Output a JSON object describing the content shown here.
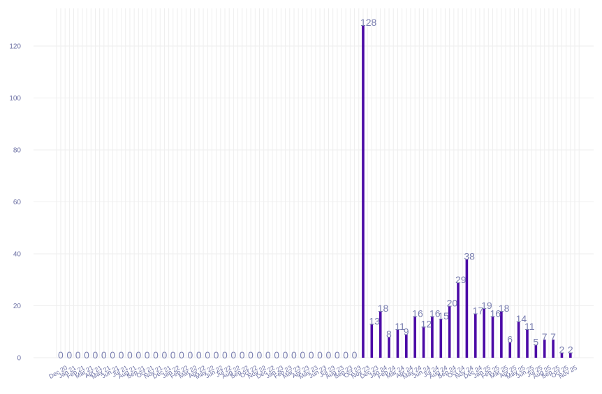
{
  "chart_data": {
    "type": "bar",
    "title": "",
    "xlabel": "",
    "ylabel": "",
    "ylim": [
      0,
      135
    ],
    "yticks": [
      0,
      20,
      40,
      60,
      80,
      100,
      120
    ],
    "grid": true,
    "legend": "none",
    "colors": {
      "bar": "#4b0aa6",
      "label": "#7a7fb0",
      "tick": "#6b6fa3",
      "grid": "#eeeeee"
    },
    "categories": [
      "Dec 20",
      "Jan 21",
      "Feb 21",
      "Mar 21",
      "Apr 21",
      "May 21",
      "Jun 21",
      "Jul 21",
      "Aug 21",
      "Sep 21",
      "Oct 21",
      "Nov 21",
      "Dec 21",
      "Jan 22",
      "Feb 22",
      "Mar 22",
      "Apr 22",
      "May 22",
      "Jun 22",
      "Jul 22",
      "Aug 22",
      "Sep 22",
      "Oct 22",
      "Nov 22",
      "Dec 22",
      "Jan 23",
      "Feb 23",
      "Mar 23",
      "Apr 23",
      "May 23",
      "Jun 23",
      "Jul 23",
      "Aug 23",
      "Sep 23",
      "Oct 23",
      "Nov 23",
      "Dec 23",
      "Jan 24",
      "Feb 24",
      "Mar 24",
      "Apr 24",
      "May 24",
      "Jun 24",
      "Jul 24",
      "Aug 24",
      "Sep 24",
      "Oct 24",
      "Nov 24",
      "Dec 24",
      "Jan 25",
      "Feb 25",
      "Mar 25",
      "Apr 25",
      "May 25",
      "Jun 25",
      "Jul 25",
      "Aug 25",
      "Sep 25",
      "Oct 25",
      "Nov 25"
    ],
    "values": [
      0,
      0,
      0,
      0,
      0,
      0,
      0,
      0,
      0,
      0,
      0,
      0,
      0,
      0,
      0,
      0,
      0,
      0,
      0,
      0,
      0,
      0,
      0,
      0,
      0,
      0,
      0,
      0,
      0,
      0,
      0,
      0,
      0,
      0,
      0,
      128,
      13,
      18,
      8,
      11,
      9,
      16,
      12,
      16,
      15,
      20,
      29,
      38,
      17,
      19,
      16,
      18,
      6,
      14,
      11,
      5,
      7,
      7,
      2,
      2
    ]
  }
}
